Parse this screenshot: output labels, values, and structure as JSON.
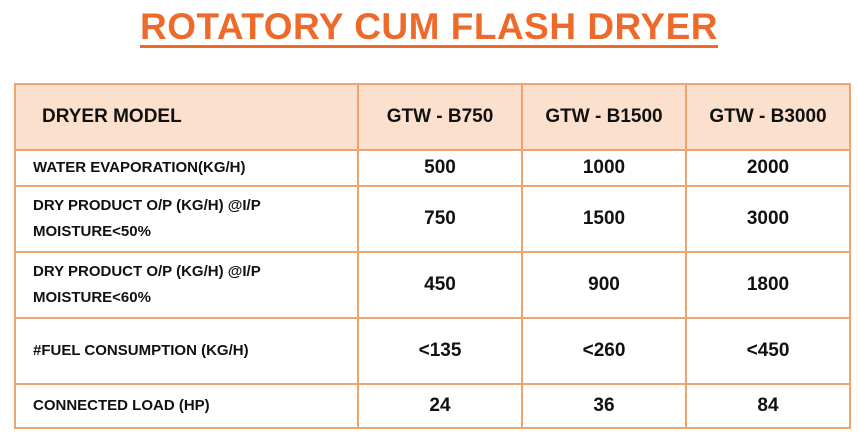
{
  "title": "ROTATORY CUM FLASH DRYER",
  "table": {
    "header_label": "DRYER MODEL",
    "models": [
      "GTW - B750",
      "GTW - B1500",
      "GTW - B3000"
    ],
    "rows": [
      {
        "label": "WATER EVAPORATION(KG/H)",
        "values": [
          "500",
          "1000",
          "2000"
        ]
      },
      {
        "label": "DRY PRODUCT O/P (KG/H) @I/P MOISTURE<50%",
        "values": [
          "750",
          "1500",
          "3000"
        ]
      },
      {
        "label": "DRY PRODUCT O/P (KG/H) @I/P MOISTURE<60%",
        "values": [
          "450",
          "900",
          "1800"
        ]
      },
      {
        "label": "#FUEL CONSUMPTION (KG/H)",
        "values": [
          "<135",
          "<260",
          "<450"
        ]
      },
      {
        "label": "CONNECTED LOAD (HP)",
        "values": [
          "24",
          "36",
          "84"
        ]
      }
    ]
  },
  "colors": {
    "title": "#ee6a2a",
    "header_fill": "#fbe0cd",
    "border": "#f0a46e"
  }
}
